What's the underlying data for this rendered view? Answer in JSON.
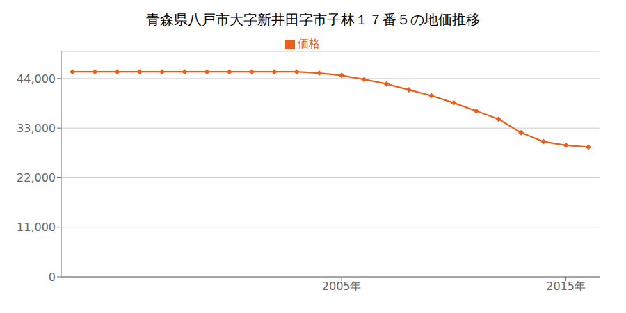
{
  "chart_data": {
    "type": "line",
    "title": "青森県八戸市大字新井田字市子林１７番５の地価推移",
    "x": [
      1993,
      1994,
      1995,
      1996,
      1997,
      1998,
      1999,
      2000,
      2001,
      2002,
      2003,
      2004,
      2005,
      2006,
      2007,
      2008,
      2009,
      2010,
      2011,
      2012,
      2013,
      2014,
      2015,
      2016
    ],
    "series": [
      {
        "name": "価格",
        "color": "#E8601C",
        "marker": "diamond",
        "values": [
          45500,
          45500,
          45500,
          45500,
          45500,
          45500,
          45500,
          45500,
          45500,
          45500,
          45500,
          45200,
          44700,
          43800,
          42800,
          41500,
          40200,
          38600,
          36800,
          35000,
          32000,
          30000,
          29200,
          28800
        ]
      }
    ],
    "xlim": [
      1992.5,
      2016.5
    ],
    "xticks": [
      {
        "value": 2005,
        "label": "2005年"
      },
      {
        "value": 2015,
        "label": "2015年"
      }
    ],
    "ylim": [
      0,
      50000
    ],
    "yticks": [
      0,
      {
        "value": 11000,
        "label": "11,000"
      },
      {
        "value": 22000,
        "label": "22,000"
      },
      {
        "value": 33000,
        "label": "33,000"
      },
      {
        "value": 44000,
        "label": "44,000"
      }
    ],
    "grid": "y",
    "legend": "top"
  }
}
